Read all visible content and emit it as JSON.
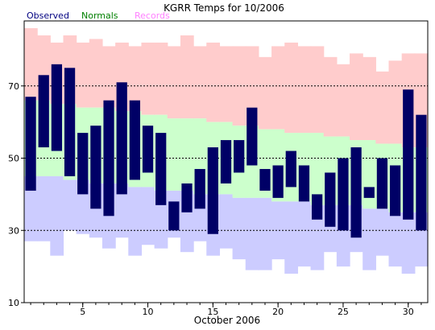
{
  "chart_data": {
    "type": "bar",
    "title": "KGRR Temps for 10/2006",
    "xlabel": "October 2006",
    "ylabel": "",
    "legend": {
      "placement": "top-left",
      "observed": "Observed",
      "normals": "Normals",
      "records": "Records"
    },
    "colors": {
      "observed": "#000066",
      "observed_label": "#000080",
      "normals_band": "#ccffcc",
      "normals_label": "#008000",
      "records_high_band": "#ffcccc",
      "records_low_band": "#ccccff",
      "records_label": "#ff80ff",
      "grid": "#000000"
    },
    "xlim": [
      0.5,
      31.5
    ],
    "ylim": [
      10,
      88
    ],
    "x_ticks": [
      5,
      10,
      15,
      20,
      25,
      30
    ],
    "y_ticks": [
      10,
      30,
      50,
      70
    ],
    "gridlines_y": [
      30,
      50,
      70
    ],
    "days": [
      1,
      2,
      3,
      4,
      5,
      6,
      7,
      8,
      9,
      10,
      11,
      12,
      13,
      14,
      15,
      16,
      17,
      18,
      19,
      20,
      21,
      22,
      23,
      24,
      25,
      26,
      27,
      28,
      29,
      30,
      31
    ],
    "observed_high": [
      67,
      73,
      76,
      75,
      57,
      59,
      66,
      71,
      66,
      59,
      57,
      38,
      43,
      47,
      53,
      55,
      55,
      64,
      47,
      48,
      52,
      48,
      40,
      46,
      50,
      53,
      42,
      50,
      48,
      69,
      62
    ],
    "observed_low": [
      41,
      53,
      52,
      45,
      40,
      36,
      34,
      40,
      44,
      46,
      37,
      30,
      35,
      36,
      29,
      43,
      46,
      48,
      41,
      39,
      42,
      38,
      33,
      31,
      30,
      28,
      39,
      36,
      34,
      33,
      30
    ],
    "normal_high": [
      66,
      66,
      65,
      65,
      64,
      64,
      64,
      63,
      63,
      62,
      62,
      61,
      61,
      61,
      60,
      60,
      59,
      59,
      58,
      58,
      57,
      57,
      57,
      56,
      56,
      55,
      55,
      54,
      54,
      53,
      53
    ],
    "normal_low": [
      45,
      45,
      45,
      44,
      44,
      43,
      43,
      43,
      42,
      42,
      41,
      41,
      41,
      40,
      40,
      40,
      39,
      39,
      39,
      38,
      38,
      38,
      37,
      37,
      37,
      37,
      36,
      36,
      35,
      35,
      35
    ],
    "record_high": [
      86,
      84,
      82,
      84,
      82,
      83,
      81,
      82,
      81,
      82,
      82,
      81,
      84,
      81,
      82,
      81,
      81,
      81,
      78,
      81,
      82,
      81,
      81,
      78,
      76,
      79,
      78,
      74,
      77,
      79,
      79
    ],
    "record_low": [
      27,
      27,
      23,
      30,
      29,
      28,
      25,
      28,
      23,
      26,
      25,
      28,
      24,
      27,
      23,
      25,
      22,
      19,
      19,
      22,
      18,
      20,
      19,
      24,
      20,
      24,
      19,
      23,
      20,
      18,
      20
    ]
  }
}
